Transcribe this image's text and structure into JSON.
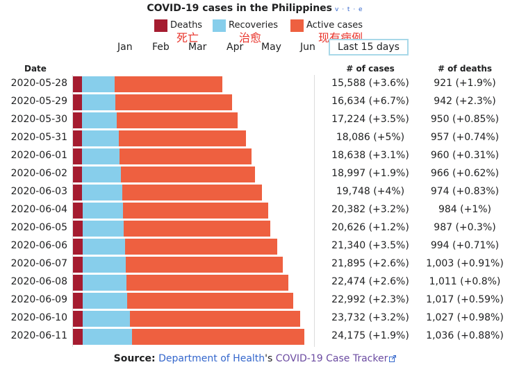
{
  "chart_data": {
    "type": "bar",
    "stacked": true,
    "orientation": "horizontal",
    "title": "COVID-19 cases in the Philippines",
    "navbox_links": "v · t · e",
    "legend": [
      {
        "name": "Deaths",
        "color": "#a51c30"
      },
      {
        "name": "Recoveries",
        "color": "#87ceeb"
      },
      {
        "name": "Active cases",
        "color": "#ee6040"
      }
    ],
    "annotations": [
      "死亡",
      "治愈",
      "现有病例"
    ],
    "range_selector": {
      "months": [
        "Jan",
        "Feb",
        "Mar",
        "Apr",
        "May",
        "Jun"
      ],
      "active_label": "Last 15 days"
    },
    "columns": {
      "date": "Date",
      "cases": "# of cases",
      "deaths": "# of deaths"
    },
    "rows": [
      {
        "date": "2020-05-28",
        "cases": 15588,
        "cases_label": "15,588 (+3.6%)",
        "deaths": 921,
        "deaths_label": "921 (+1.9%)",
        "recoveries": 3433
      },
      {
        "date": "2020-05-29",
        "cases": 16634,
        "cases_label": "16,634 (+6.7%)",
        "deaths": 942,
        "deaths_label": "942 (+2.3%)",
        "recoveries": 3506
      },
      {
        "date": "2020-05-30",
        "cases": 17224,
        "cases_label": "17,224 (+3.5%)",
        "deaths": 950,
        "deaths_label": "950 (+0.85%)",
        "recoveries": 3588
      },
      {
        "date": "2020-05-31",
        "cases": 18086,
        "cases_label": "18,086 (+5%)",
        "deaths": 957,
        "deaths_label": "957 (+0.74%)",
        "recoveries": 3808
      },
      {
        "date": "2020-06-01",
        "cases": 18638,
        "cases_label": "18,638 (+3.1%)",
        "deaths": 960,
        "deaths_label": "960 (+0.31%)",
        "recoveries": 3909
      },
      {
        "date": "2020-06-02",
        "cases": 18997,
        "cases_label": "18,997 (+1.9%)",
        "deaths": 966,
        "deaths_label": "966 (+0.62%)",
        "recoveries": 4063
      },
      {
        "date": "2020-06-03",
        "cases": 19748,
        "cases_label": "19,748 (+4%)",
        "deaths": 974,
        "deaths_label": "974 (+0.83%)",
        "recoveries": 4153
      },
      {
        "date": "2020-06-04",
        "cases": 20382,
        "cases_label": "20,382 (+3.2%)",
        "deaths": 984,
        "deaths_label": "984 (+1%)",
        "recoveries": 4248
      },
      {
        "date": "2020-06-05",
        "cases": 20626,
        "cases_label": "20,626 (+1.2%)",
        "deaths": 987,
        "deaths_label": "987 (+0.3%)",
        "recoveries": 4330
      },
      {
        "date": "2020-06-06",
        "cases": 21340,
        "cases_label": "21,340 (+3.5%)",
        "deaths": 994,
        "deaths_label": "994 (+0.71%)",
        "recoveries": 4441
      },
      {
        "date": "2020-06-07",
        "cases": 21895,
        "cases_label": "21,895 (+2.6%)",
        "deaths": 1003,
        "deaths_label": "1,003 (+0.91%)",
        "recoveries": 4530
      },
      {
        "date": "2020-06-08",
        "cases": 22474,
        "cases_label": "22,474 (+2.6%)",
        "deaths": 1011,
        "deaths_label": "1,011 (+0.8%)",
        "recoveries": 4571
      },
      {
        "date": "2020-06-09",
        "cases": 22992,
        "cases_label": "22,992 (+2.3%)",
        "deaths": 1017,
        "deaths_label": "1,017 (+0.59%)",
        "recoveries": 4617
      },
      {
        "date": "2020-06-10",
        "cases": 23732,
        "cases_label": "23,732 (+3.2%)",
        "deaths": 1027,
        "deaths_label": "1,027 (+0.98%)",
        "recoveries": 4895
      },
      {
        "date": "2020-06-11",
        "cases": 24175,
        "cases_label": "24,175 (+1.9%)",
        "deaths": 1036,
        "deaths_label": "1,036 (+0.88%)",
        "recoveries": 5165
      }
    ],
    "scale_max": 24175,
    "source": {
      "label": "Source:",
      "org": "Department of Health",
      "possessive": "'s",
      "tracker": "COVID-19 Case Tracker"
    }
  }
}
